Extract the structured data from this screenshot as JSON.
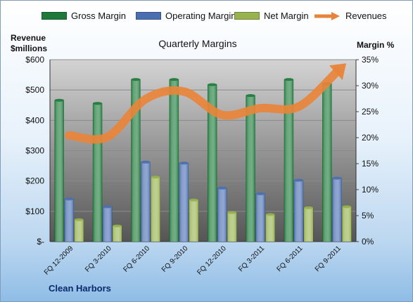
{
  "legend": {
    "gross_margin": "Gross Margin",
    "operating_margin": "Operating Margin",
    "net_margin": "Net Margin",
    "revenues": "Revenues"
  },
  "titles": {
    "chart_title": "Quarterly Margins",
    "left_axis_line1": "Revenue",
    "left_axis_line2": "$millions",
    "right_axis": "Margin  %",
    "company": "Clean Harbors"
  },
  "colors": {
    "gross_margin": "#1e7a3a",
    "operating_margin": "#4a6fb0",
    "net_margin": "#97b24e",
    "revenues": "#e8843a",
    "plot_background_top": "#d4d4d4",
    "plot_background_bottom": "#555555"
  },
  "chart_data": {
    "type": "bar",
    "title": "Quarterly Margins",
    "categories": [
      "FQ 12-2009",
      "FQ 3-2010",
      "FQ 6-2010",
      "FQ 9-2010",
      "FQ 12-2010",
      "FQ 3-2011",
      "FQ 6-2011",
      "FQ 9-2011"
    ],
    "series": [
      {
        "name": "Gross Margin",
        "axis": "right",
        "type": "bar",
        "values": [
          27.2,
          26.6,
          31.2,
          31.2,
          30.2,
          28.1,
          31.2,
          30.4
        ]
      },
      {
        "name": "Operating Margin",
        "axis": "right",
        "type": "bar",
        "values": [
          8.2,
          6.7,
          15.3,
          15.1,
          10.3,
          9.2,
          11.8,
          12.2
        ]
      },
      {
        "name": "Net Margin",
        "axis": "right",
        "type": "bar",
        "values": [
          4.2,
          3.0,
          12.4,
          8.0,
          5.6,
          5.2,
          6.5,
          6.7
        ]
      },
      {
        "name": "Revenues",
        "axis": "left",
        "type": "line",
        "values": [
          350,
          345,
          470,
          495,
          418,
          440,
          445,
          560
        ]
      }
    ],
    "ylabel_left": "Revenue $millions",
    "ylabel_right": "Margin %",
    "ylim_left": [
      0,
      600
    ],
    "ylim_right": [
      0,
      35
    ],
    "left_ticks": [
      "$-",
      "$100",
      "$200",
      "$300",
      "$400",
      "$500",
      "$600"
    ],
    "right_ticks": [
      "0%",
      "5%",
      "10%",
      "15%",
      "20%",
      "25%",
      "30%",
      "35%"
    ],
    "grid": true,
    "legend_position": "top"
  }
}
